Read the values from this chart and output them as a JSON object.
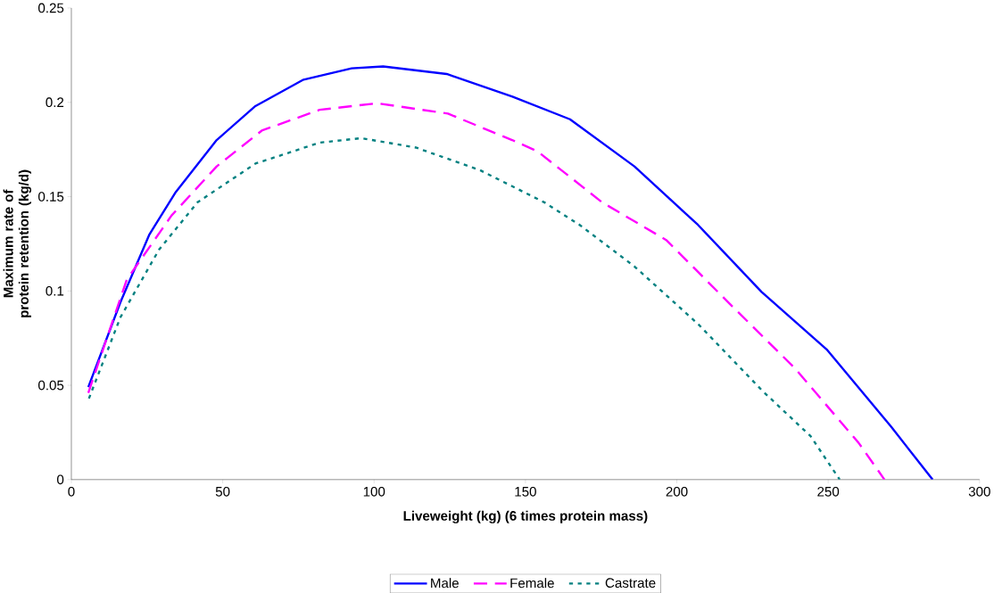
{
  "chart_data": {
    "type": "line",
    "xlabel": "Liveweight (kg) (6 times protein mass)",
    "ylabel": "Maximum rate of protein retention (kg/d)",
    "xlim": [
      0,
      300
    ],
    "xticks": [
      0,
      50,
      100,
      150,
      200,
      250,
      300
    ],
    "ylim": [
      0,
      0.25
    ],
    "yticks": [
      0,
      0.05,
      0.1,
      0.15,
      0.2,
      0.25
    ],
    "grid": false,
    "legend": "bottom",
    "marker": "none",
    "series": [
      {
        "name": "Male",
        "color": "#0000ff",
        "line_style": "solid",
        "x": [
          5.6,
          16.2,
          25.8,
          34.3,
          48,
          60.8,
          76.7,
          92.6,
          103,
          124,
          145.7,
          164.7,
          186,
          207,
          228,
          249.5,
          270.8,
          284.5
        ],
        "values": [
          0.049,
          0.094,
          0.13,
          0.152,
          0.18,
          0.198,
          0.212,
          0.218,
          0.219,
          0.215,
          0.203,
          0.191,
          0.166,
          0.135,
          0.0995,
          0.069,
          0.028,
          0
        ]
      },
      {
        "name": "Female",
        "color": "#ff00ff",
        "line_style": "dashed",
        "x": [
          5.6,
          18.3,
          33.1,
          48,
          62.9,
          82,
          101,
          124.4,
          145.6,
          154,
          175.3,
          196.5,
          217.6,
          239,
          260,
          268.6
        ],
        "values": [
          0.046,
          0.106,
          0.14,
          0.166,
          0.185,
          0.196,
          0.1995,
          0.194,
          0.18,
          0.174,
          0.147,
          0.127,
          0.093,
          0.059,
          0.0196,
          0
        ]
      },
      {
        "name": "Castrate",
        "color": "#008080",
        "line_style": "dotted",
        "x": [
          5.8,
          16.2,
          29,
          41.7,
          60.8,
          82,
          95.8,
          113.8,
          135,
          156.2,
          167.9,
          186,
          207,
          228.3,
          244.2,
          253.8
        ],
        "values": [
          0.043,
          0.086,
          0.122,
          0.147,
          0.1675,
          0.1786,
          0.181,
          0.176,
          0.164,
          0.147,
          0.135,
          0.113,
          0.0825,
          0.047,
          0.023,
          0
        ]
      }
    ]
  }
}
